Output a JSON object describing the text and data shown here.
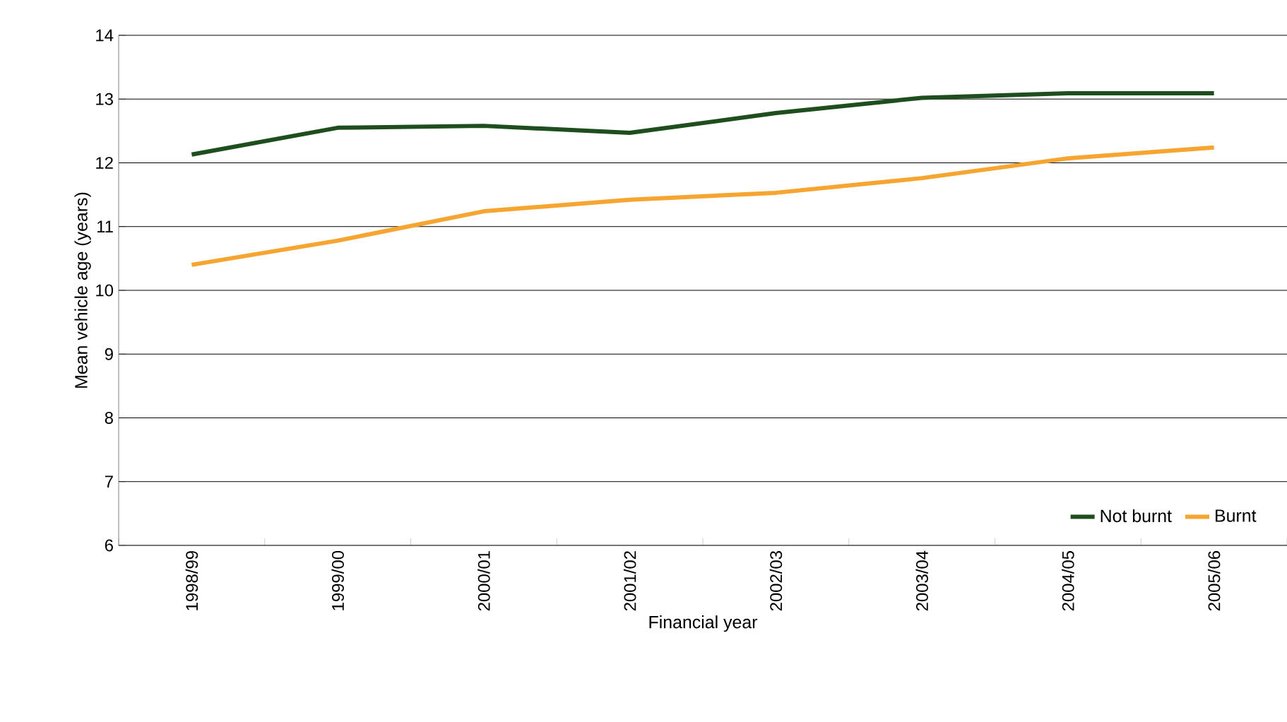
{
  "chart_data": {
    "type": "line",
    "xlabel": "Financial year",
    "ylabel": "Mean vehicle age (years)",
    "categories": [
      "1998/99",
      "1999/00",
      "2000/01",
      "2001/02",
      "2002/03",
      "2003/04",
      "2004/05",
      "2005/06"
    ],
    "series": [
      {
        "name": "Not burnt",
        "color": "#1e4d1e",
        "values": [
          12.13,
          12.55,
          12.58,
          12.47,
          12.78,
          13.02,
          13.09,
          13.09
        ]
      },
      {
        "name": "Burnt",
        "color": "#f7a531",
        "values": [
          10.4,
          10.78,
          11.24,
          11.42,
          11.53,
          11.76,
          12.07,
          12.24
        ]
      }
    ],
    "ylim": [
      6,
      14
    ],
    "yticks": [
      6,
      7,
      8,
      9,
      10,
      11,
      12,
      13,
      14
    ],
    "grid": "y",
    "legend": "bottom right",
    "marker": "none",
    "line_style": "solid"
  }
}
